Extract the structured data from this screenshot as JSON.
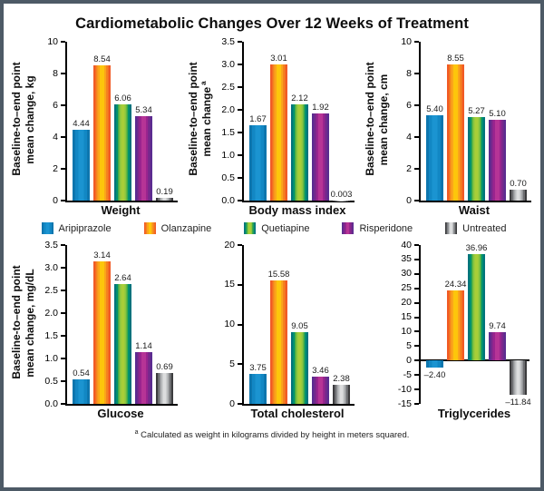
{
  "title": "Cardiometabolic Changes Over 12 Weeks of Treatment",
  "frame": {
    "border_color": "#4d5a66",
    "background": "#ffffff"
  },
  "series_order": [
    "aripiprazole",
    "olanzapine",
    "quetiapine",
    "risperidone",
    "untreated"
  ],
  "series_colors": {
    "aripiprazole": [
      "#0D76AE",
      "#1287C4",
      "#1B94D1",
      "#1B94D1",
      "#1287C4",
      "#0D76AE"
    ],
    "olanzapine": [
      "#F15B25",
      "#F5821F",
      "#FAA51A",
      "#FDC60B",
      "#FDC60B",
      "#FAA51A",
      "#F5821F",
      "#F15B25"
    ],
    "quetiapine": [
      "#00737C",
      "#00916F",
      "#41AA49",
      "#8BC53F",
      "#A8CE38",
      "#A8CE38",
      "#8BC53F",
      "#41AA49",
      "#00916F",
      "#00737C"
    ],
    "risperidone": [
      "#5B2C90",
      "#7A288C",
      "#9A248E",
      "#B63496",
      "#B63496",
      "#9A248E",
      "#7A288C",
      "#5B2C90"
    ],
    "untreated": [
      "#3C3C3E",
      "#6D6E71",
      "#939598",
      "#BCBEC0",
      "#DCDDDE",
      "#DCDDDE",
      "#BCBEC0",
      "#939598",
      "#6D6E71",
      "#3C3C3E"
    ]
  },
  "legend": {
    "position": "middle",
    "items": [
      {
        "label": "Aripiprazole",
        "series": "aripiprazole"
      },
      {
        "label": "Olanzapine",
        "series": "olanzapine"
      },
      {
        "label": "Quetiapine",
        "series": "quetiapine"
      },
      {
        "label": "Risperidone",
        "series": "risperidone"
      },
      {
        "label": "Untreated",
        "series": "untreated"
      }
    ]
  },
  "chart_data": [
    {
      "type": "bar",
      "title": "Weight",
      "ylabel1": "Baseline-to–end point",
      "ylabel2": "mean change, kg",
      "categories": [
        "Aripiprazole",
        "Olanzapine",
        "Quetiapine",
        "Risperidone",
        "Untreated"
      ],
      "values": [
        4.44,
        8.54,
        6.06,
        5.34,
        0.19
      ],
      "value_labels": [
        "4.44",
        "8.54",
        "6.06",
        "5.34",
        "0.19"
      ],
      "ylim": [
        0,
        10
      ],
      "yticks": [
        "0",
        "2",
        "4",
        "6",
        "8",
        "10"
      ]
    },
    {
      "type": "bar",
      "title": "Body mass index",
      "ylabel1": "Baseline-to–end point",
      "ylabel2": "mean change",
      "ylabel_sup": "a",
      "categories": [
        "Aripiprazole",
        "Olanzapine",
        "Quetiapine",
        "Risperidone",
        "Untreated"
      ],
      "values": [
        1.67,
        3.01,
        2.12,
        1.92,
        0.003
      ],
      "value_labels": [
        "1.67",
        "3.01",
        "2.12",
        "1.92",
        "0.003"
      ],
      "ylim": [
        0,
        3.5
      ],
      "yticks": [
        "0.0",
        "0.5",
        "1.0",
        "1.5",
        "2.0",
        "2.5",
        "3.0",
        "3.5"
      ]
    },
    {
      "type": "bar",
      "title": "Waist",
      "ylabel1": "Baseline-to–end point",
      "ylabel2": "mean change, cm",
      "categories": [
        "Aripiprazole",
        "Olanzapine",
        "Quetiapine",
        "Risperidone",
        "Untreated"
      ],
      "values": [
        5.4,
        8.55,
        5.27,
        5.1,
        0.7
      ],
      "value_labels": [
        "5.40",
        "8.55",
        "5.27",
        "5.10",
        "0.70"
      ],
      "ylim": [
        0,
        10
      ],
      "yticks": [
        "0",
        "2",
        "4",
        "6",
        "8",
        "10"
      ]
    },
    {
      "type": "bar",
      "title": "Glucose",
      "ylabel1": "Baseline-to–end point",
      "ylabel2": "mean change, mg/dL",
      "categories": [
        "Aripiprazole",
        "Olanzapine",
        "Quetiapine",
        "Risperidone",
        "Untreated"
      ],
      "values": [
        0.54,
        3.14,
        2.64,
        1.14,
        0.69
      ],
      "value_labels": [
        "0.54",
        "3.14",
        "2.64",
        "1.14",
        "0.69"
      ],
      "ylim": [
        0,
        3.5
      ],
      "yticks": [
        "0.0",
        "0.5",
        "1.0",
        "1.5",
        "2.0",
        "2.5",
        "3.0",
        "3.5"
      ]
    },
    {
      "type": "bar",
      "title": "Total cholesterol",
      "categories": [
        "Aripiprazole",
        "Olanzapine",
        "Quetiapine",
        "Risperidone",
        "Untreated"
      ],
      "values": [
        3.75,
        15.58,
        9.05,
        3.46,
        2.38
      ],
      "value_labels": [
        "3.75",
        "15.58",
        "9.05",
        "3.46",
        "2.38"
      ],
      "ylim": [
        0,
        20
      ],
      "yticks": [
        "0",
        "5",
        "10",
        "15",
        "20"
      ]
    },
    {
      "type": "bar",
      "title": "Triglycerides",
      "categories": [
        "Aripiprazole",
        "Olanzapine",
        "Quetiapine",
        "Risperidone",
        "Untreated"
      ],
      "values": [
        -2.4,
        24.34,
        36.96,
        9.74,
        -11.84
      ],
      "value_labels": [
        "–2.40",
        "24.34",
        "36.96",
        "9.74",
        "–11.84"
      ],
      "ylim": [
        -15,
        40
      ],
      "yticks": [
        "-15",
        "-10",
        "-5",
        "0",
        "5",
        "10",
        "15",
        "20",
        "25",
        "30",
        "35",
        "40"
      ]
    }
  ],
  "footnote": {
    "sup": "a",
    "text": "Calculated as weight in kilograms divided by height in meters squared."
  }
}
